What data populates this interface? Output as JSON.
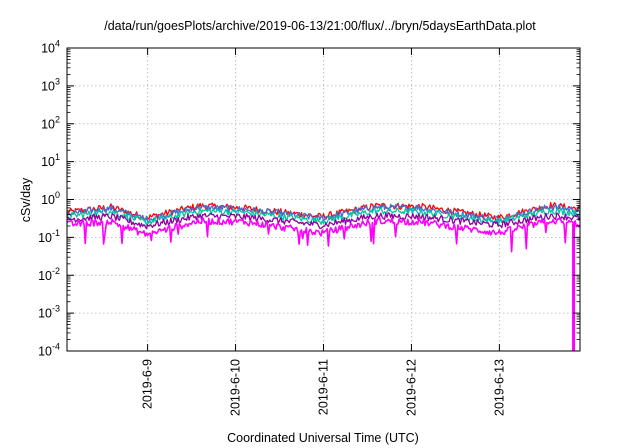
{
  "chart_data": {
    "type": "line",
    "title": "/data/run/goesPlots/archive/2019-06-13/21:00/flux/../bryn/5daysEarthData.plot",
    "xlabel": "Coordinated Universal Time (UTC)",
    "ylabel": "cSv/day",
    "yscale": "log",
    "ylim": [
      0.0001,
      10000
    ],
    "y_ticks": [
      {
        "base": "10",
        "exp": "-4"
      },
      {
        "base": "10",
        "exp": "-3"
      },
      {
        "base": "10",
        "exp": "-2"
      },
      {
        "base": "10",
        "exp": "-1"
      },
      {
        "base": "10",
        "exp": "0"
      },
      {
        "base": "10",
        "exp": "1"
      },
      {
        "base": "10",
        "exp": "2"
      },
      {
        "base": "10",
        "exp": "3"
      },
      {
        "base": "10",
        "exp": "4"
      }
    ],
    "xlim": [
      "2019-06-08 02:00",
      "2019-06-13 22:00"
    ],
    "x_ticks": [
      "2019-6-9",
      "2019-6-10",
      "2019-6-11",
      "2019-6-12",
      "2019-6-13"
    ],
    "grid": true,
    "series": [
      {
        "color": "#ff0000",
        "envelope": [
          [
            0.0,
            0.46
          ],
          [
            0.5,
            0.63
          ],
          [
            0.9,
            0.33
          ],
          [
            1.5,
            0.68
          ],
          [
            2.0,
            0.6
          ],
          [
            2.9,
            0.35
          ],
          [
            3.5,
            0.68
          ],
          [
            4.0,
            0.66
          ],
          [
            4.9,
            0.33
          ],
          [
            5.5,
            0.7
          ],
          [
            5.85,
            0.56
          ]
        ]
      },
      {
        "color": "#3f6fd6",
        "envelope": [
          [
            0.0,
            0.42
          ],
          [
            0.5,
            0.58
          ],
          [
            0.9,
            0.3
          ],
          [
            1.5,
            0.62
          ],
          [
            2.0,
            0.55
          ],
          [
            2.9,
            0.32
          ],
          [
            3.5,
            0.62
          ],
          [
            4.0,
            0.6
          ],
          [
            4.9,
            0.3
          ],
          [
            5.5,
            0.64
          ],
          [
            5.85,
            0.5
          ]
        ]
      },
      {
        "color": "#00c8a0",
        "envelope": [
          [
            0.0,
            0.36
          ],
          [
            0.5,
            0.48
          ],
          [
            0.9,
            0.25
          ],
          [
            1.5,
            0.5
          ],
          [
            2.0,
            0.46
          ],
          [
            2.9,
            0.27
          ],
          [
            3.5,
            0.5
          ],
          [
            4.0,
            0.48
          ],
          [
            4.9,
            0.26
          ],
          [
            5.5,
            0.52
          ],
          [
            5.85,
            0.42
          ]
        ]
      },
      {
        "color": "#9000a0",
        "envelope": [
          [
            0.0,
            0.3
          ],
          [
            0.5,
            0.36
          ],
          [
            0.9,
            0.2
          ],
          [
            1.5,
            0.37
          ],
          [
            2.0,
            0.35
          ],
          [
            2.9,
            0.21
          ],
          [
            3.5,
            0.37
          ],
          [
            4.0,
            0.36
          ],
          [
            4.9,
            0.21
          ],
          [
            5.5,
            0.38
          ],
          [
            5.85,
            0.32
          ]
        ]
      },
      {
        "color": "#ff00ff",
        "envelope": [
          [
            0.0,
            0.22
          ],
          [
            0.5,
            0.26
          ],
          [
            0.9,
            0.12
          ],
          [
            1.5,
            0.27
          ],
          [
            2.0,
            0.26
          ],
          [
            2.9,
            0.13
          ],
          [
            3.5,
            0.27
          ],
          [
            4.0,
            0.26
          ],
          [
            4.9,
            0.13
          ],
          [
            5.5,
            0.28
          ],
          [
            5.85,
            0.22
          ]
        ],
        "dropout": {
          "at": 5.76,
          "to": 0.0001
        }
      }
    ]
  }
}
